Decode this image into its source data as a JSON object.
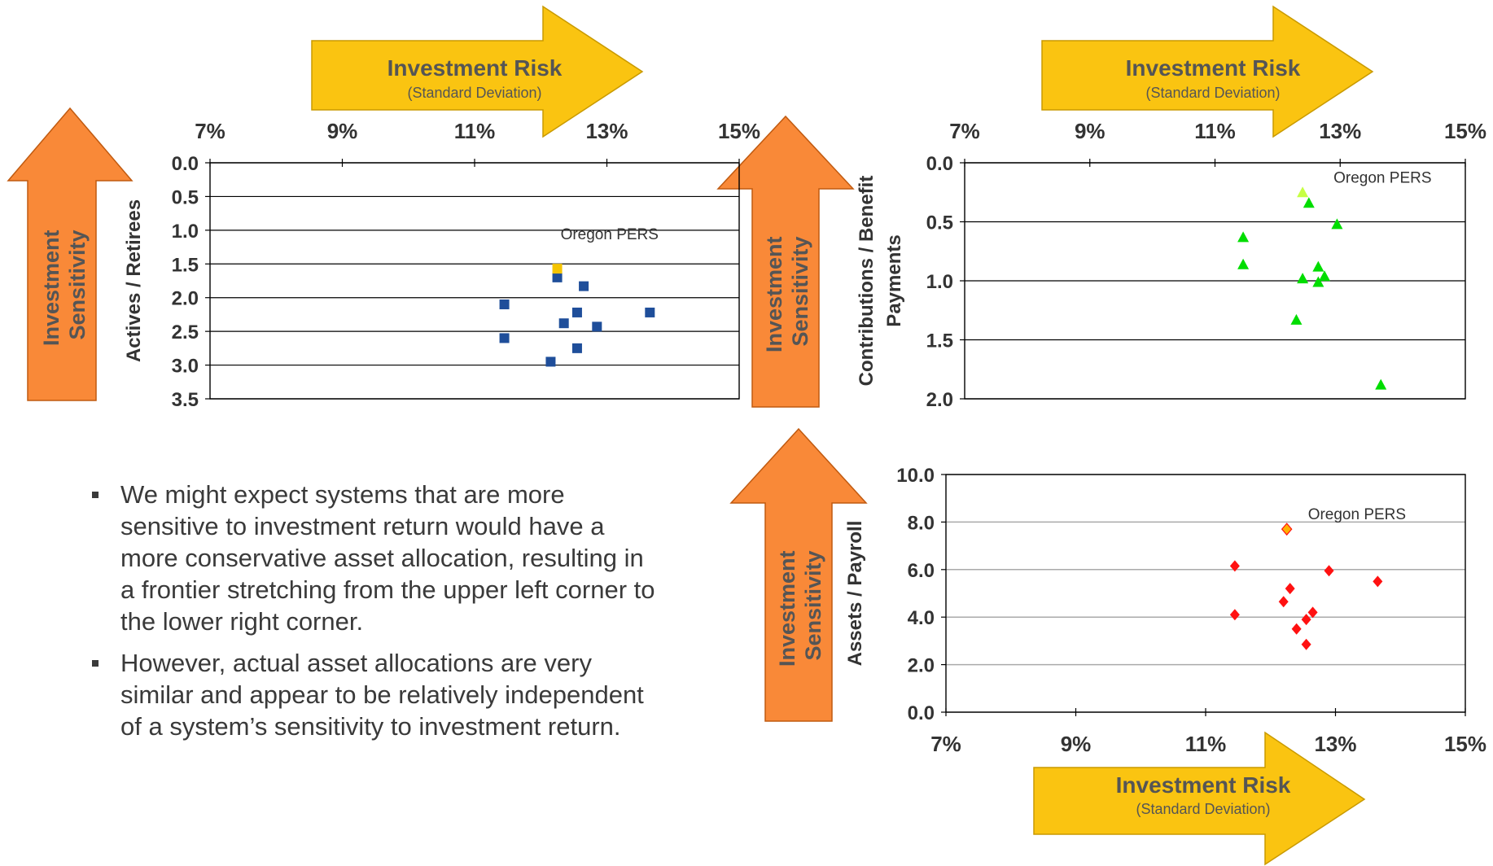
{
  "arrows": {
    "risk_title": "Investment Risk",
    "risk_subtitle": "(Standard Deviation)",
    "sensitivity_line1": "Investment",
    "sensitivity_line2": "Sensitivity"
  },
  "colors": {
    "risk_arrow_fill": "#fac411",
    "risk_arrow_stroke": "#c99a00",
    "sensitivity_arrow_fill": "#f98938",
    "sensitivity_arrow_stroke": "#c05a10",
    "series_square": "#1f4e9a",
    "series_triangle": "#00dd00",
    "series_diamond": "#ff1111",
    "highlight_square": "#f5c400",
    "highlight_triangle": "#c6ff44",
    "highlight_diamond": "#ffb000"
  },
  "bullets": [
    "We might expect systems that are more sensitive to investment return would have a more conservative asset allocation, resulting in a frontier stretching from the upper left corner to the lower right corner.",
    "However, actual asset allocations are very similar and appear to be relatively independent of a system’s sensitivity to investment return."
  ],
  "chart_data": [
    {
      "type": "scatter",
      "id": "actives-retirees",
      "ylabel": "Actives / Retirees",
      "xlabel": "",
      "xlim": [
        0.07,
        0.15
      ],
      "ylim": [
        0.0,
        3.5
      ],
      "y_reversed": true,
      "x_ticks": [
        "7%",
        "9%",
        "11%",
        "13%",
        "15%"
      ],
      "y_ticks": [
        "0.0",
        "0.5",
        "1.0",
        "1.5",
        "2.0",
        "2.5",
        "3.0",
        "3.5"
      ],
      "x_axis_position": "top",
      "marker": "square",
      "annotation": "Oregon PERS",
      "highlight": {
        "x": 0.1225,
        "y": 1.57
      },
      "points": [
        {
          "x": 0.1225,
          "y": 1.7
        },
        {
          "x": 0.1265,
          "y": 1.83
        },
        {
          "x": 0.1145,
          "y": 2.1
        },
        {
          "x": 0.1255,
          "y": 2.22
        },
        {
          "x": 0.1365,
          "y": 2.22
        },
        {
          "x": 0.1235,
          "y": 2.38
        },
        {
          "x": 0.1285,
          "y": 2.43
        },
        {
          "x": 0.1145,
          "y": 2.6
        },
        {
          "x": 0.1255,
          "y": 2.75
        },
        {
          "x": 0.1215,
          "y": 2.95
        }
      ]
    },
    {
      "type": "scatter",
      "id": "contributions-benefit",
      "ylabel": "Contributions / Benefit Payments",
      "xlabel": "",
      "xlim": [
        0.07,
        0.15
      ],
      "ylim": [
        0.0,
        2.0
      ],
      "y_reversed": true,
      "x_ticks": [
        "7%",
        "9%",
        "11%",
        "13%",
        "15%"
      ],
      "y_ticks": [
        "0.0",
        "0.5",
        "1.0",
        "1.5",
        "2.0"
      ],
      "x_axis_position": "top",
      "marker": "triangle",
      "annotation": "Oregon PERS",
      "highlight": {
        "x": 0.124,
        "y": 0.25
      },
      "points": [
        {
          "x": 0.125,
          "y": 0.34
        },
        {
          "x": 0.1295,
          "y": 0.52
        },
        {
          "x": 0.1145,
          "y": 0.63
        },
        {
          "x": 0.1145,
          "y": 0.86
        },
        {
          "x": 0.1265,
          "y": 0.88
        },
        {
          "x": 0.124,
          "y": 0.98
        },
        {
          "x": 0.1275,
          "y": 0.96
        },
        {
          "x": 0.1265,
          "y": 1.01
        },
        {
          "x": 0.123,
          "y": 1.33
        },
        {
          "x": 0.1365,
          "y": 1.88
        }
      ]
    },
    {
      "type": "scatter",
      "id": "assets-payroll",
      "ylabel": "Assets / Payroll",
      "xlabel": "",
      "xlim": [
        0.07,
        0.15
      ],
      "ylim": [
        0.0,
        10.0
      ],
      "y_reversed": false,
      "x_ticks": [
        "7%",
        "9%",
        "11%",
        "13%",
        "15%"
      ],
      "y_ticks": [
        "0.0",
        "2.0",
        "4.0",
        "6.0",
        "8.0",
        "10.0"
      ],
      "x_axis_position": "bottom",
      "marker": "diamond",
      "annotation": "Oregon PERS",
      "highlight": {
        "x": 0.1225,
        "y": 7.7
      },
      "points": [
        {
          "x": 0.1145,
          "y": 6.15
        },
        {
          "x": 0.129,
          "y": 5.95
        },
        {
          "x": 0.1365,
          "y": 5.5
        },
        {
          "x": 0.123,
          "y": 5.2
        },
        {
          "x": 0.122,
          "y": 4.65
        },
        {
          "x": 0.1145,
          "y": 4.1
        },
        {
          "x": 0.1265,
          "y": 4.2
        },
        {
          "x": 0.1255,
          "y": 3.9
        },
        {
          "x": 0.124,
          "y": 3.5
        },
        {
          "x": 0.1255,
          "y": 2.85
        }
      ]
    }
  ]
}
